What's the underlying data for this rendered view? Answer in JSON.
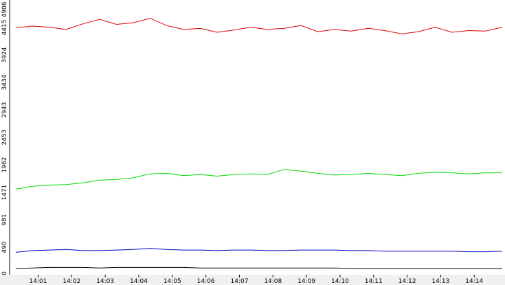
{
  "chart_data": {
    "type": "line",
    "title": "",
    "xlabel": "",
    "ylabel": "",
    "grid": false,
    "legend": "none",
    "ylim": [
      0,
      4906
    ],
    "yticks": [
      0,
      490,
      981,
      1471,
      1962,
      2453,
      2943,
      3434,
      3924,
      4415,
      4906
    ],
    "x_time_range": [
      "14:00:09",
      "14:14:55"
    ],
    "xticks": [
      "14:01",
      "14:02",
      "14:03",
      "14:04",
      "14:05",
      "14:06",
      "14:07",
      "14:08",
      "14:09",
      "14:10",
      "14:11",
      "14:12",
      "14:13",
      "14:14"
    ],
    "x": [
      "14:00:20",
      "14:00:50",
      "14:01:20",
      "14:01:50",
      "14:02:20",
      "14:02:50",
      "14:03:20",
      "14:03:50",
      "14:04:20",
      "14:04:50",
      "14:05:20",
      "14:05:50",
      "14:06:20",
      "14:06:50",
      "14:07:20",
      "14:07:50",
      "14:08:20",
      "14:08:50",
      "14:09:20",
      "14:09:50",
      "14:10:20",
      "14:10:50",
      "14:11:20",
      "14:11:50",
      "14:12:20",
      "14:12:50",
      "14:13:20",
      "14:13:50",
      "14:14:20",
      "14:14:50"
    ],
    "series": [
      {
        "color": "#dd0000",
        "values": [
          4410,
          4440,
          4420,
          4380,
          4480,
          4560,
          4470,
          4500,
          4580,
          4450,
          4380,
          4400,
          4330,
          4370,
          4420,
          4380,
          4400,
          4450,
          4340,
          4380,
          4350,
          4400,
          4360,
          4300,
          4340,
          4420,
          4330,
          4360,
          4350,
          4420
        ]
      },
      {
        "color": "#00dd00",
        "values": [
          1530,
          1580,
          1600,
          1610,
          1640,
          1690,
          1700,
          1730,
          1800,
          1810,
          1770,
          1790,
          1760,
          1790,
          1800,
          1790,
          1880,
          1850,
          1810,
          1780,
          1790,
          1810,
          1790,
          1770,
          1810,
          1830,
          1820,
          1800,
          1820,
          1820
        ]
      },
      {
        "color": "#0000bb",
        "values": [
          400,
          430,
          440,
          450,
          430,
          430,
          440,
          450,
          470,
          450,
          440,
          440,
          430,
          440,
          440,
          430,
          430,
          440,
          440,
          440,
          430,
          430,
          420,
          420,
          420,
          420,
          420,
          410,
          410,
          420
        ]
      },
      {
        "color": "#000000",
        "values": [
          110,
          120,
          130,
          130,
          130,
          120,
          130,
          130,
          130,
          130,
          130,
          120,
          120,
          120,
          120,
          120,
          120,
          120,
          120,
          120,
          110,
          110,
          110,
          110,
          110,
          110,
          110,
          110,
          110,
          110
        ]
      }
    ]
  }
}
